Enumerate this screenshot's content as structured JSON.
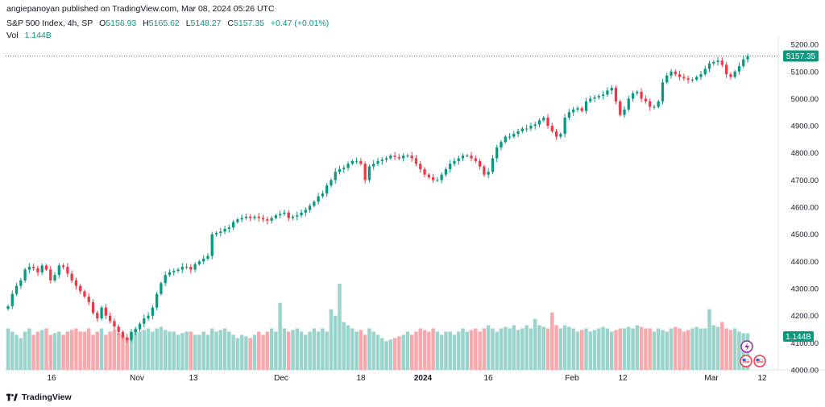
{
  "header": {
    "publisher": "angiepanoyan published on TradingView.com, Mar 08, 2024 05:26 UTC"
  },
  "legend": {
    "symbol": "S&P 500 Index, 4h, SP",
    "open_label": "O",
    "open": "5156.93",
    "high_label": "H",
    "high": "5165.62",
    "low_label": "L",
    "low": "5148.27",
    "close_label": "C",
    "close": "5157.35",
    "change": "+0.47 (+0.01%)",
    "volume_label": "Vol",
    "volume": "1.144B"
  },
  "price_axis": {
    "ticks": [
      "5200.00",
      "5100.00",
      "5000.00",
      "4900.00",
      "4800.00",
      "4700.00",
      "4600.00",
      "4500.00",
      "4400.00",
      "4300.00",
      "4200.00",
      "4100.00",
      "4000.00"
    ],
    "last_price": "5157.35",
    "last_volume": "1.144B"
  },
  "time_axis": {
    "ticks": [
      "16",
      "Nov",
      "13",
      "Dec",
      "18",
      "2024",
      "16",
      "Feb",
      "12",
      "Mar",
      "12"
    ]
  },
  "footer": {
    "brand": "TradingView"
  },
  "colors": {
    "up": "#089981",
    "down": "#f23645",
    "vol_up": "#9bd4cd",
    "vol_down": "#f7a9ae",
    "text": "#131722"
  },
  "chart_data": {
    "type": "candlestick",
    "title": "S&P 500 Index, 4h, SP",
    "ylim": [
      4000,
      5230
    ],
    "x_ticks": [
      "16",
      "Nov",
      "13",
      "Dec",
      "18",
      "2024",
      "16",
      "Feb",
      "12",
      "Mar",
      "12"
    ],
    "y_ticks": [
      4000,
      4100,
      4200,
      4300,
      4400,
      4500,
      4600,
      4700,
      4800,
      4900,
      5000,
      5100,
      5200
    ],
    "last_close": 5157.35,
    "series": [
      {
        "name": "S&P 500 Index",
        "close": [
          4235,
          4280,
          4310,
          4330,
          4370,
          4380,
          4375,
          4360,
          4385,
          4370,
          4330,
          4350,
          4385,
          4380,
          4355,
          4330,
          4310,
          4290,
          4270,
          4250,
          4210,
          4190,
          4230,
          4200,
          4180,
          4160,
          4140,
          4120,
          4110,
          4140,
          4150,
          4170,
          4190,
          4200,
          4230,
          4280,
          4320,
          4350,
          4360,
          4365,
          4370,
          4380,
          4380,
          4370,
          4390,
          4400,
          4410,
          4420,
          4500,
          4505,
          4510,
          4520,
          4525,
          4545,
          4555,
          4560,
          4565,
          4560,
          4565,
          4560,
          4555,
          4550,
          4560,
          4570,
          4575,
          4580,
          4560,
          4565,
          4570,
          4580,
          4590,
          4605,
          4620,
          4640,
          4650,
          4680,
          4700,
          4730,
          4740,
          4745,
          4760,
          4770,
          4770,
          4760,
          4700,
          4750,
          4760,
          4770,
          4775,
          4780,
          4790,
          4785,
          4780,
          4790,
          4790,
          4780,
          4760,
          4740,
          4720,
          4710,
          4700,
          4700,
          4720,
          4740,
          4760,
          4770,
          4780,
          4790,
          4790,
          4780,
          4770,
          4750,
          4720,
          4730,
          4780,
          4820,
          4840,
          4860,
          4860,
          4870,
          4880,
          4890,
          4890,
          4900,
          4905,
          4920,
          4930,
          4900,
          4880,
          4860,
          4870,
          4930,
          4950,
          4960,
          4965,
          4955,
          4990,
          5000,
          5005,
          5010,
          5015,
          5030,
          5040,
          4990,
          4940,
          4960,
          5000,
          5020,
          5025,
          5000,
          4990,
          4970,
          4970,
          4990,
          5060,
          5085,
          5100,
          5090,
          5080,
          5075,
          5070,
          5070,
          5080,
          5090,
          5110,
          5130,
          5135,
          5140,
          5125,
          5090,
          5080,
          5100,
          5120,
          5145,
          5157
        ]
      },
      {
        "name": "Vol",
        "values": [
          1.3,
          1.2,
          1.1,
          1.0,
          1.2,
          1.3,
          1.1,
          1.2,
          1.25,
          1.3,
          1.1,
          1.15,
          1.2,
          1.1,
          1.2,
          1.25,
          1.3,
          1.2,
          1.2,
          1.3,
          1.1,
          1.2,
          1.3,
          1.1,
          1.2,
          1.25,
          1.15,
          1.1,
          1.0,
          1.2,
          1.3,
          1.2,
          1.25,
          1.3,
          1.2,
          1.3,
          1.35,
          1.25,
          1.2,
          1.2,
          1.1,
          1.15,
          1.2,
          1.2,
          1.1,
          1.1,
          1.2,
          1.1,
          1.3,
          1.2,
          1.25,
          1.3,
          1.2,
          1.1,
          1.0,
          1.1,
          1.05,
          1.0,
          1.1,
          1.2,
          1.1,
          1.2,
          1.3,
          1.2,
          2.1,
          1.3,
          1.2,
          1.25,
          1.3,
          1.2,
          1.1,
          1.2,
          1.3,
          1.2,
          1.3,
          1.2,
          1.9,
          1.7,
          2.7,
          1.5,
          1.4,
          1.3,
          1.2,
          1.25,
          1.1,
          1.3,
          1.2,
          1.1,
          1.0,
          0.9,
          0.95,
          1.0,
          1.05,
          1.1,
          1.2,
          1.1,
          1.2,
          1.3,
          1.25,
          1.2,
          1.3,
          1.2,
          1.1,
          1.2,
          1.2,
          1.1,
          1.2,
          1.3,
          1.2,
          1.25,
          1.3,
          1.2,
          1.3,
          1.4,
          1.3,
          1.2,
          1.3,
          1.35,
          1.3,
          1.4,
          1.25,
          1.3,
          1.4,
          1.3,
          1.6,
          1.4,
          1.35,
          1.3,
          1.8,
          1.4,
          1.3,
          1.4,
          1.35,
          1.3,
          1.2,
          1.25,
          1.3,
          1.2,
          1.25,
          1.3,
          1.35,
          1.3,
          1.2,
          1.25,
          1.3,
          1.3,
          1.35,
          1.3,
          1.4,
          1.35,
          1.3,
          1.3,
          1.2,
          1.3,
          1.25,
          1.2,
          1.3,
          1.35,
          1.3,
          1.2,
          1.25,
          1.3,
          1.35,
          1.3,
          1.3,
          1.9,
          1.4,
          1.35,
          1.5,
          1.3,
          1.25,
          1.3,
          1.2,
          1.15,
          1.144
        ]
      }
    ]
  }
}
